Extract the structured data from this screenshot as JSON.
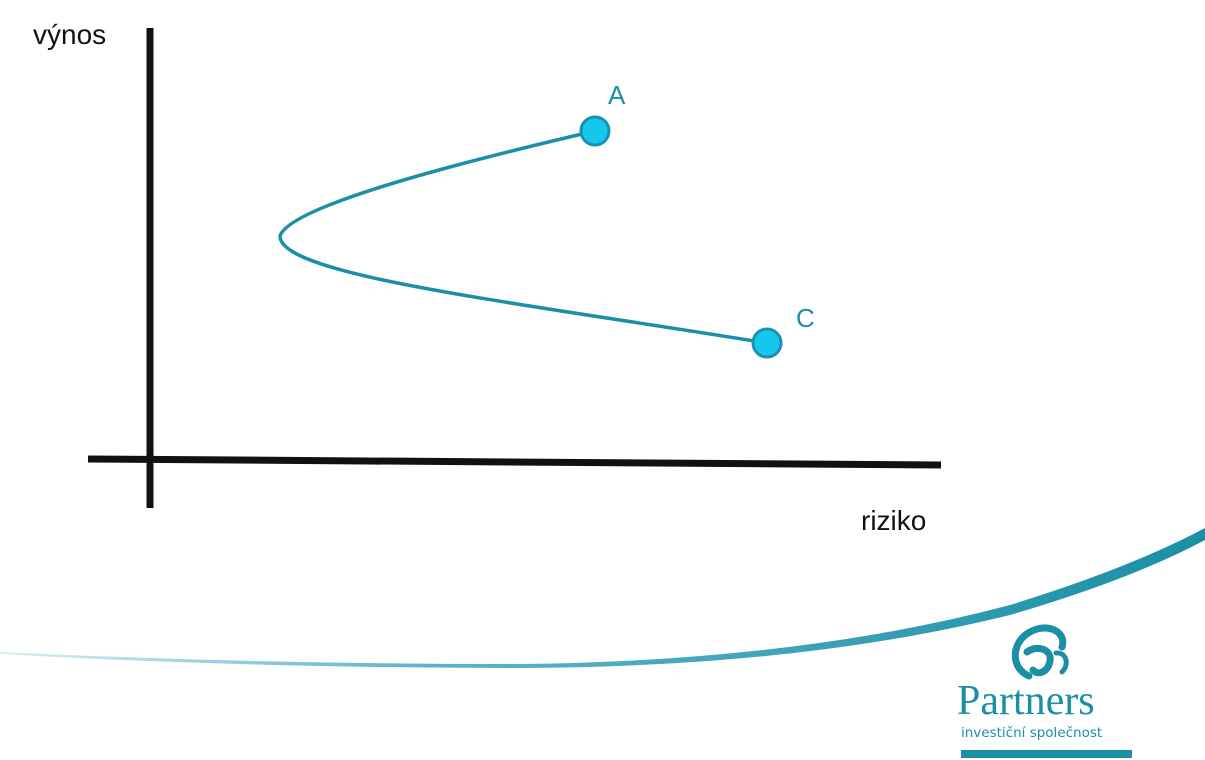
{
  "diagram": {
    "y_axis_label": "výnos",
    "x_axis_label": "riziko",
    "points": [
      {
        "label": "A"
      },
      {
        "label": "C"
      }
    ]
  },
  "brand": {
    "name": "Partners",
    "tagline": "investiční společnost"
  },
  "colors": {
    "accent": "#1a8fa6",
    "point_fill": "#14c8ec",
    "point_stroke": "#1d8fb0",
    "axis": "#111111",
    "text": "#111111"
  }
}
